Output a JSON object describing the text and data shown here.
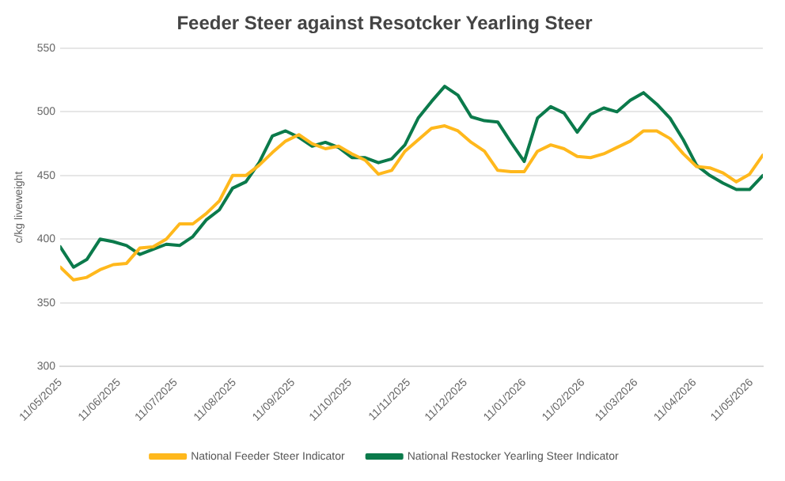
{
  "chart_data": {
    "type": "line",
    "title": "Feeder Steer against Resotcker Yearling Steer",
    "ylabel": "c/kg liveweight",
    "x": [
      "2025-05-11",
      "2025-05-18",
      "2025-05-25",
      "2025-06-01",
      "2025-06-08",
      "2025-06-15",
      "2025-06-22",
      "2025-06-29",
      "2025-07-06",
      "2025-07-13",
      "2025-07-20",
      "2025-07-27",
      "2025-08-03",
      "2025-08-10",
      "2025-08-17",
      "2025-08-24",
      "2025-08-31",
      "2025-09-07",
      "2025-09-14",
      "2025-09-21",
      "2025-09-28",
      "2025-10-05",
      "2025-10-12",
      "2025-10-19",
      "2025-10-26",
      "2025-11-02",
      "2025-11-09",
      "2025-11-16",
      "2025-11-23",
      "2025-11-30",
      "2025-12-07",
      "2025-12-14",
      "2025-12-21",
      "2025-12-28",
      "2026-01-04",
      "2026-01-11",
      "2026-01-18",
      "2026-01-25",
      "2026-02-01",
      "2026-02-08",
      "2026-02-15",
      "2026-02-22",
      "2026-03-01",
      "2026-03-08",
      "2026-03-15",
      "2026-03-22",
      "2026-03-29",
      "2026-04-05",
      "2026-04-12",
      "2026-04-19",
      "2026-04-26",
      "2026-05-03",
      "2026-05-10",
      "2026-05-17"
    ],
    "series": [
      {
        "name": "National Feeder Steer Indicator",
        "color": "#ffb81c",
        "values": [
          378,
          368,
          370,
          376,
          380,
          381,
          393,
          394,
          400,
          412,
          412,
          420,
          430,
          450,
          450,
          458,
          468,
          477,
          482,
          475,
          471,
          473,
          467,
          462,
          451,
          454,
          469,
          478,
          487,
          489,
          485,
          476,
          469,
          454,
          453,
          453,
          469,
          474,
          471,
          465,
          464,
          467,
          472,
          477,
          485,
          485,
          479,
          467,
          457,
          456,
          452,
          445,
          451,
          466
        ]
      },
      {
        "name": "National Restocker Yearling Steer Indicator",
        "color": "#0b7a4b",
        "values": [
          394,
          378,
          384,
          400,
          398,
          395,
          388,
          392,
          396,
          395,
          402,
          415,
          423,
          440,
          445,
          460,
          481,
          485,
          480,
          473,
          476,
          472,
          464,
          464,
          460,
          463,
          474,
          495,
          508,
          520,
          513,
          496,
          493,
          492,
          476,
          461,
          495,
          504,
          499,
          484,
          498,
          503,
          500,
          509,
          515,
          506,
          495,
          478,
          458,
          450,
          444,
          439,
          439,
          450
        ]
      }
    ],
    "xlim": [
      "2025-05-11",
      "2026-05-17"
    ],
    "xticks": [
      {
        "value": "2025-05-11",
        "label": "11/05/2025"
      },
      {
        "value": "2025-06-11",
        "label": "11/06/2025"
      },
      {
        "value": "2025-07-11",
        "label": "11/07/2025"
      },
      {
        "value": "2025-08-11",
        "label": "11/08/2025"
      },
      {
        "value": "2025-09-11",
        "label": "11/09/2025"
      },
      {
        "value": "2025-10-11",
        "label": "11/10/2025"
      },
      {
        "value": "2025-11-11",
        "label": "11/11/2025"
      },
      {
        "value": "2025-12-11",
        "label": "11/12/2025"
      },
      {
        "value": "2026-01-11",
        "label": "11/01/2026"
      },
      {
        "value": "2026-02-11",
        "label": "11/02/2026"
      },
      {
        "value": "2026-03-11",
        "label": "11/03/2026"
      },
      {
        "value": "2026-04-11",
        "label": "11/04/2026"
      },
      {
        "value": "2026-05-11",
        "label": "11/05/2026"
      }
    ],
    "ylim": [
      300,
      550
    ],
    "yticks": [
      300,
      350,
      400,
      450,
      500,
      550
    ],
    "grid": "y",
    "legend": "bottom",
    "marker": "none",
    "line_style": "solid"
  }
}
